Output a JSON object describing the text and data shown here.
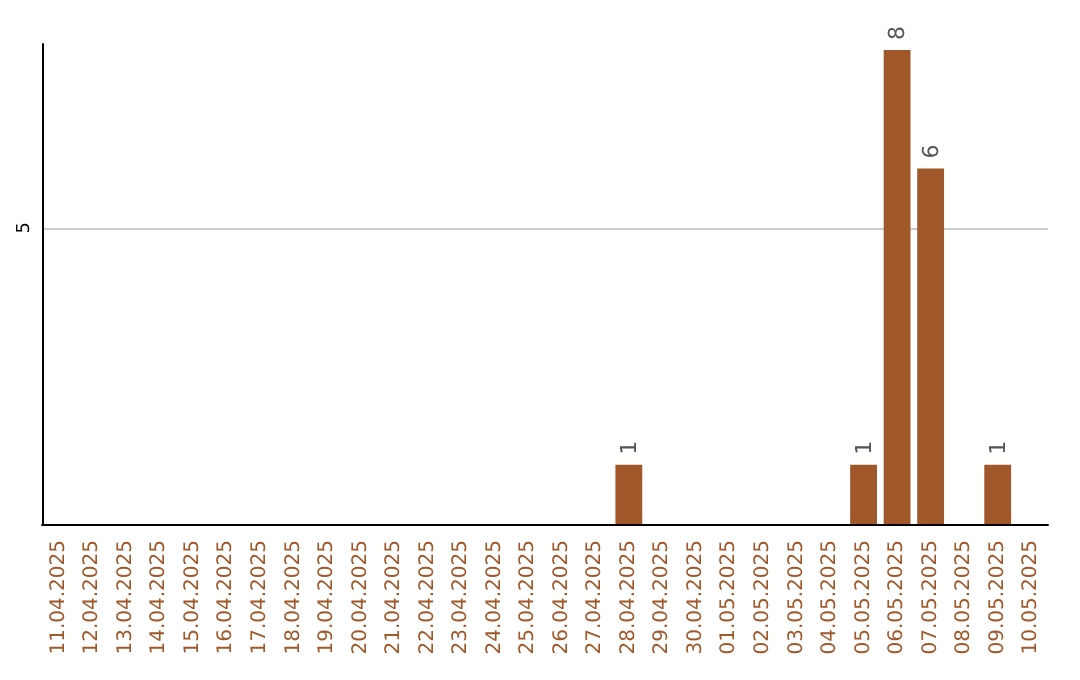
{
  "chart_data": {
    "type": "bar",
    "categories": [
      "11.04.2025",
      "12.04.2025",
      "13.04.2025",
      "14.04.2025",
      "15.04.2025",
      "16.04.2025",
      "17.04.2025",
      "18.04.2025",
      "19.04.2025",
      "20.04.2025",
      "21.04.2025",
      "22.04.2025",
      "23.04.2025",
      "24.04.2025",
      "25.04.2025",
      "26.04.2025",
      "27.04.2025",
      "28.04.2025",
      "29.04.2025",
      "30.04.2025",
      "01.05.2025",
      "02.05.2025",
      "03.05.2025",
      "04.05.2025",
      "05.05.2025",
      "06.05.2025",
      "07.05.2025",
      "08.05.2025",
      "09.05.2025",
      "10.05.2025"
    ],
    "values": [
      null,
      null,
      null,
      null,
      null,
      null,
      null,
      null,
      null,
      null,
      null,
      null,
      null,
      null,
      null,
      null,
      null,
      1,
      null,
      null,
      null,
      null,
      null,
      null,
      1,
      8,
      6,
      null,
      1,
      null
    ],
    "color": "#a0582a",
    "ylim": [
      0,
      8.1
    ],
    "yticks": [
      {
        "value": 0,
        "label": null
      },
      5
    ],
    "grid": "y",
    "data_labels": true
  }
}
